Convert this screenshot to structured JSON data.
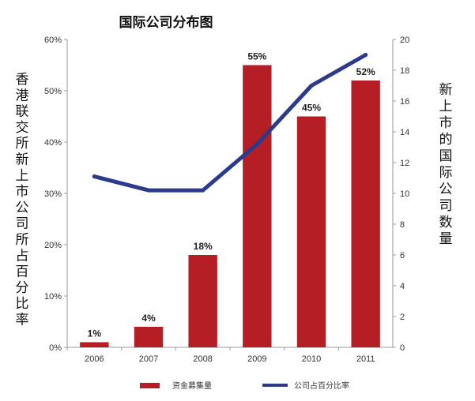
{
  "chart_data": {
    "type": "bar",
    "title": "国际公司分布图",
    "categories": [
      "2006",
      "2007",
      "2008",
      "2009",
      "2010",
      "2011"
    ],
    "series": [
      {
        "name": "资金募集量",
        "type": "bar",
        "axis": "left",
        "values": [
          1,
          4,
          18,
          55,
          45,
          52
        ],
        "labels": [
          "1%",
          "4%",
          "18%",
          "55%",
          "45%",
          "52%"
        ],
        "color": "#b41e24"
      },
      {
        "name": "公司占百分比率",
        "type": "line",
        "axis": "right",
        "values": [
          11.1,
          10.2,
          10.2,
          13.2,
          17.0,
          19.0
        ],
        "color": "#2b3a8c"
      }
    ],
    "y_left": {
      "label": "香港联交所新上市公司所占百分比率",
      "ylim": [
        0,
        60
      ],
      "ticks": [
        "0%",
        "10%",
        "20%",
        "30%",
        "40%",
        "50%",
        "60%"
      ]
    },
    "y_right": {
      "label": "新上市的国际公司数量",
      "ylim": [
        0,
        20
      ],
      "ticks": [
        "0",
        "2",
        "4",
        "6",
        "8",
        "10",
        "12",
        "14",
        "16",
        "18",
        "20"
      ]
    },
    "grid": false,
    "legend_position": "bottom"
  }
}
